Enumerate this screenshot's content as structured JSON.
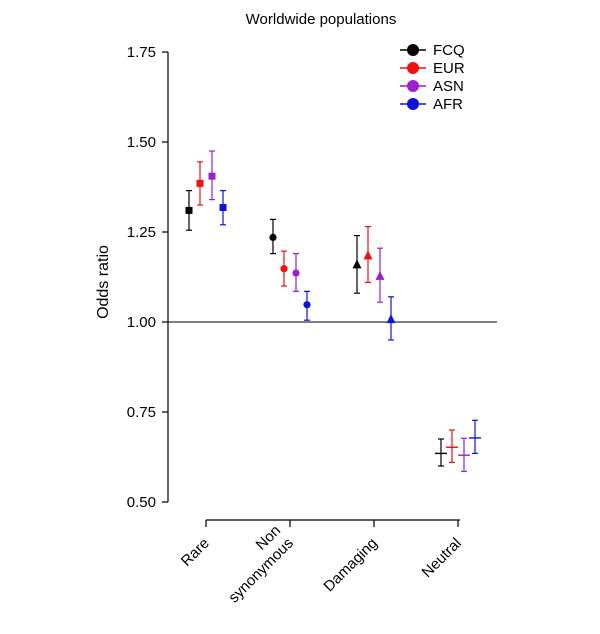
{
  "chart_data": {
    "type": "scatter",
    "title": "Worldwide populations",
    "ylabel": "Odds ratio",
    "xlabel": "",
    "ylim": [
      0.5,
      1.75
    ],
    "yticks": [
      "0.50",
      "0.75",
      "1.00",
      "1.25",
      "1.50",
      "1.75"
    ],
    "reference_line": 1.0,
    "categories": [
      {
        "label": "Rare",
        "lines": [
          "Rare"
        ]
      },
      {
        "label": "Non synonymous",
        "lines": [
          "Non",
          "synonymous"
        ]
      },
      {
        "label": "Damaging",
        "lines": [
          "Damaging"
        ]
      },
      {
        "label": "Neutral",
        "lines": [
          "Neutral"
        ]
      }
    ],
    "series": [
      {
        "name": "FCQ",
        "color": "#000000",
        "values": [
          1.31,
          1.235,
          1.16,
          0.635
        ],
        "lower": [
          1.255,
          1.19,
          1.08,
          0.6
        ],
        "upper": [
          1.365,
          1.285,
          1.24,
          0.675
        ],
        "markers": [
          "square",
          "circle",
          "triangle",
          "plus"
        ]
      },
      {
        "name": "EUR",
        "color": "#ee1111",
        "values": [
          1.385,
          1.148,
          1.185,
          0.652
        ],
        "lower": [
          1.325,
          1.1,
          1.11,
          0.61
        ],
        "upper": [
          1.445,
          1.197,
          1.265,
          0.7
        ],
        "markers": [
          "square",
          "circle",
          "triangle",
          "plus"
        ]
      },
      {
        "name": "ASN",
        "color": "#9922cc",
        "values": [
          1.405,
          1.136,
          1.128,
          0.63
        ],
        "lower": [
          1.34,
          1.085,
          1.055,
          0.585
        ],
        "upper": [
          1.475,
          1.19,
          1.205,
          0.677
        ],
        "markers": [
          "square",
          "circle",
          "triangle",
          "plus"
        ]
      },
      {
        "name": "AFR",
        "color": "#1111dd",
        "values": [
          1.318,
          1.048,
          1.008,
          0.678
        ],
        "lower": [
          1.27,
          1.005,
          0.95,
          0.635
        ],
        "upper": [
          1.365,
          1.085,
          1.07,
          0.727
        ],
        "markers": [
          "square",
          "circle",
          "triangle",
          "plus"
        ]
      }
    ],
    "legend_position": "top-right"
  }
}
